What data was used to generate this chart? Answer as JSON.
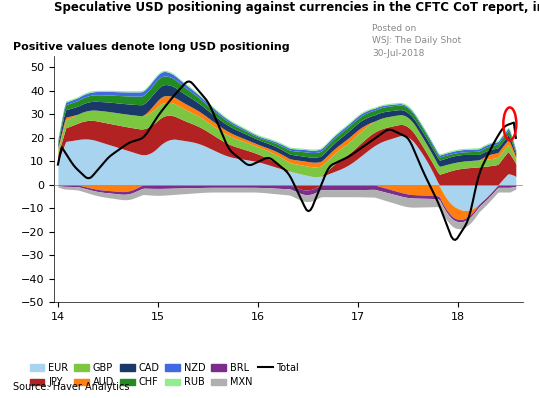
{
  "title": "Speculative USD positioning against currencies in the CFTC CoT report, in $ bn",
  "subtitle": "Positive values denote long USD positioning",
  "source": "Source: Haver Analytics",
  "posted_on": "Posted on\nWSJ: The Daily Shot\n30-Jul-2018",
  "xlim": [
    2013.96,
    2018.65
  ],
  "ylim": [
    -50,
    55
  ],
  "yticks": [
    -50,
    -40,
    -30,
    -20,
    -10,
    0,
    10,
    20,
    30,
    40,
    50
  ],
  "xticks": [
    2014,
    2015,
    2016,
    2017,
    2018
  ],
  "xticklabels": [
    "14",
    "15",
    "16",
    "17",
    "18"
  ],
  "colors": {
    "EUR": "#a8d4f0",
    "JPY": "#b22222",
    "GBP": "#7dc642",
    "AUD": "#ff7f0e",
    "CAD": "#1a3868",
    "CHF": "#228B22",
    "NZD": "#4169e1",
    "RUB": "#90ee90",
    "BRL": "#7b2d8b",
    "MXN": "#b0b0b0",
    "Total": "#000000"
  }
}
